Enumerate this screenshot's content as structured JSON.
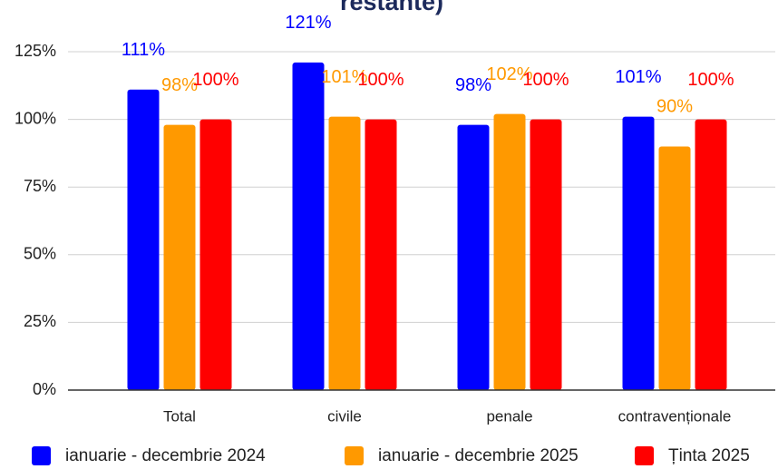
{
  "chart_data": {
    "type": "bar",
    "title": "restante)",
    "categories": [
      "Total",
      "civile",
      "penale",
      "contravenționale"
    ],
    "series": [
      {
        "name": "ianuarie - decembrie 2024",
        "color": "#0000ff",
        "values": [
          111,
          121,
          98,
          101
        ],
        "value_labels": [
          "111%",
          "121%",
          "98%",
          "101%"
        ]
      },
      {
        "name": "ianuarie - decembrie 2025",
        "color": "#ff9900",
        "values": [
          98,
          101,
          102,
          90
        ],
        "value_labels": [
          "98%",
          "101%",
          "102%",
          "90%"
        ]
      },
      {
        "name": "Ținta 2025",
        "color": "#ff0000",
        "values": [
          100,
          100,
          100,
          100
        ],
        "value_labels": [
          "100%",
          "100%",
          "100%",
          "100%"
        ]
      }
    ],
    "ylim": [
      0,
      125
    ],
    "yticks": [
      {
        "value": 0,
        "label": "0%"
      },
      {
        "value": 25,
        "label": "25%"
      },
      {
        "value": 50,
        "label": "50%"
      },
      {
        "value": 75,
        "label": "75%"
      },
      {
        "value": 100,
        "label": "100%"
      },
      {
        "value": 125,
        "label": "125%"
      }
    ],
    "grid": true,
    "legend": "bottom"
  }
}
